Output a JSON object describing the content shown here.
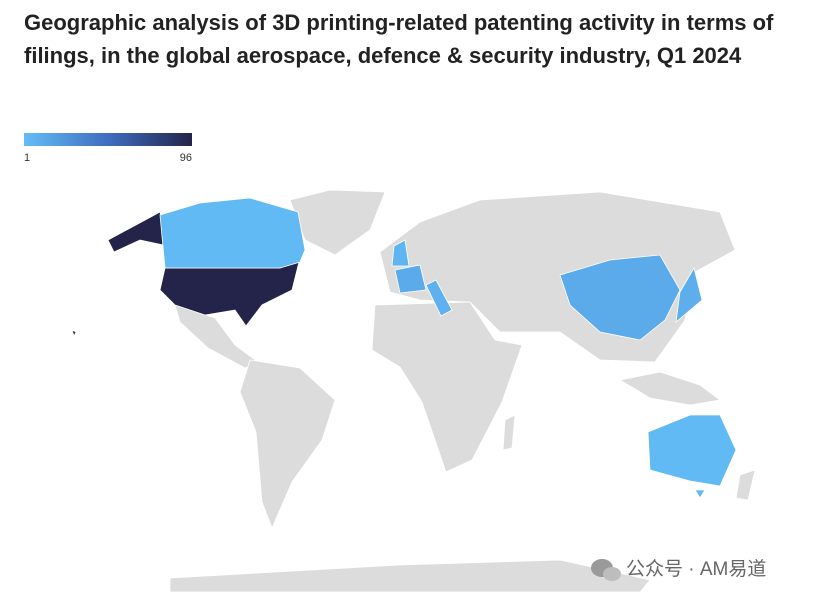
{
  "chart_data": {
    "type": "choropleth",
    "title": "Geographic analysis of 3D printing-related patenting activity in terms of filings, in the global aerospace, defence & security industry, Q1 2024",
    "scale": {
      "min": 1,
      "max": 96,
      "colors": [
        "#63bdf6",
        "#3f6dc0",
        "#24244a"
      ]
    },
    "values": [
      96,
      3,
      12,
      10,
      12,
      6,
      8,
      3
    ],
    "watermark": "公众号 · AM易道"
  }
}
